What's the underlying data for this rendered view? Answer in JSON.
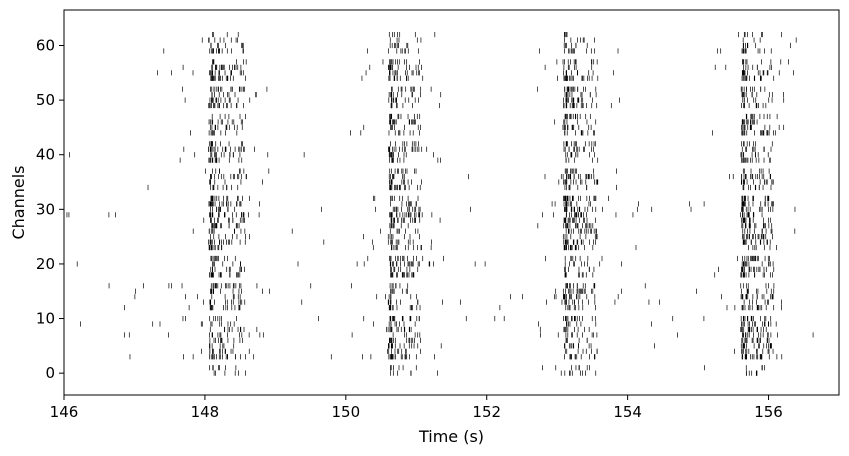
{
  "chart_data": {
    "type": "scatter",
    "marker": "vertical-tick",
    "title": "",
    "xlabel": "Time (s)",
    "ylabel": "Channels",
    "xlim": [
      146,
      157
    ],
    "ylim": [
      -4,
      66.5
    ],
    "xticks": [
      146,
      148,
      150,
      152,
      154,
      156
    ],
    "yticks": [
      0,
      10,
      20,
      30,
      40,
      50,
      60
    ],
    "grid": false,
    "legend": "none",
    "colors": {
      "spike": "#000000",
      "axes": "#000000",
      "background": "#ffffff"
    },
    "num_channels": 63,
    "burst_windows": [
      {
        "start": 148.05,
        "end": 148.6
      },
      {
        "start": 150.6,
        "end": 151.1
      },
      {
        "start": 153.08,
        "end": 153.6
      },
      {
        "start": 155.6,
        "end": 156.1
      }
    ],
    "quiet_channels": [
      2,
      11,
      17,
      22,
      33,
      38,
      43,
      48,
      53,
      58
    ],
    "background_active_channels": [
      3,
      7,
      9,
      10,
      11,
      12,
      13,
      14,
      15,
      16,
      20,
      29,
      30,
      31,
      40,
      55,
      56
    ]
  }
}
